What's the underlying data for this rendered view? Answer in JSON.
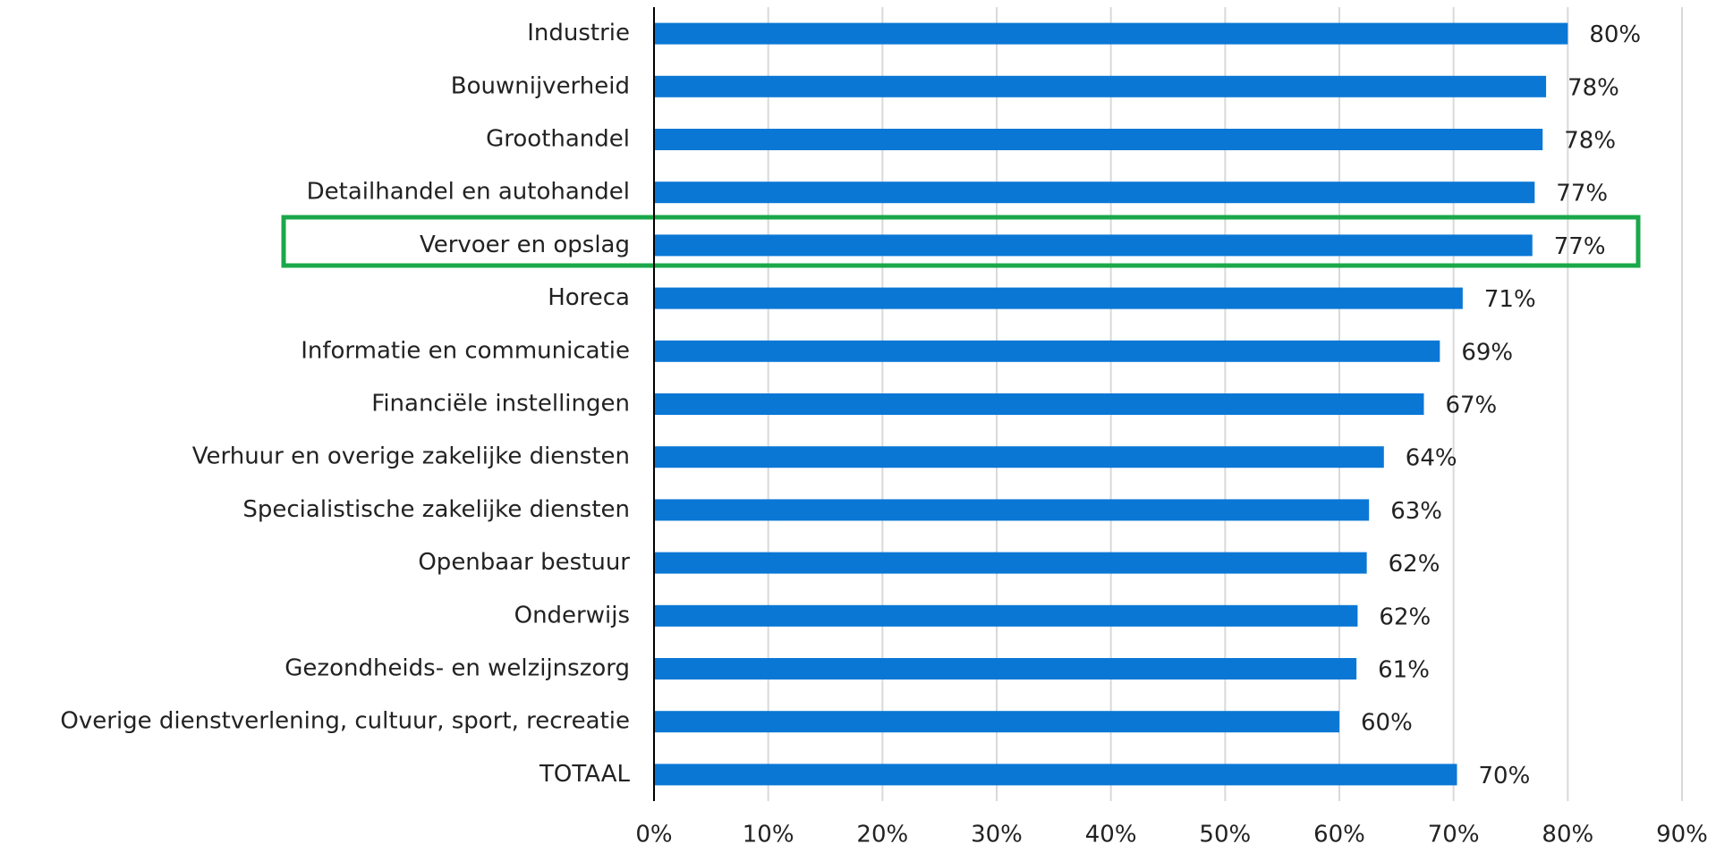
{
  "chart_data": {
    "type": "bar",
    "orientation": "horizontal",
    "categories": [
      "Industrie",
      "Bouwnijverheid",
      "Groothandel",
      "Detailhandel en autohandel",
      "Vervoer en opslag",
      "Horeca",
      "Informatie en communicatie",
      "Financiële instellingen",
      "Verhuur en overige zakelijke diensten",
      "Specialistische zakelijke diensten",
      "Openbaar bestuur",
      "Onderwijs",
      "Gezondheids- en welzijnszorg",
      "Overige dienstverlening, cultuur, sport, recreatie",
      "TOTAAL"
    ],
    "values": [
      80,
      78.1,
      77.8,
      77.1,
      76.9,
      70.8,
      68.8,
      67.4,
      63.9,
      62.6,
      62.4,
      61.6,
      61.5,
      60,
      70.3
    ],
    "value_labels": [
      "80%",
      "78%",
      "78%",
      "77%",
      "77%",
      "71%",
      "69%",
      "67%",
      "64%",
      "63%",
      "62%",
      "62%",
      "61%",
      "60%",
      "70%"
    ],
    "color": "#0a77d5",
    "xlim": [
      0,
      90
    ],
    "xticks": [
      {
        "value": 0,
        "label": "0%"
      },
      {
        "value": 10,
        "label": "10%"
      },
      {
        "value": 20,
        "label": "20%"
      },
      {
        "value": 30,
        "label": "30%"
      },
      {
        "value": 40,
        "label": "40%"
      },
      {
        "value": 50,
        "label": "50%"
      },
      {
        "value": 60,
        "label": "60%"
      },
      {
        "value": 70,
        "label": "70%"
      },
      {
        "value": 80,
        "label": "80%"
      },
      {
        "value": 90,
        "label": "90%"
      }
    ],
    "grid": true
  }
}
